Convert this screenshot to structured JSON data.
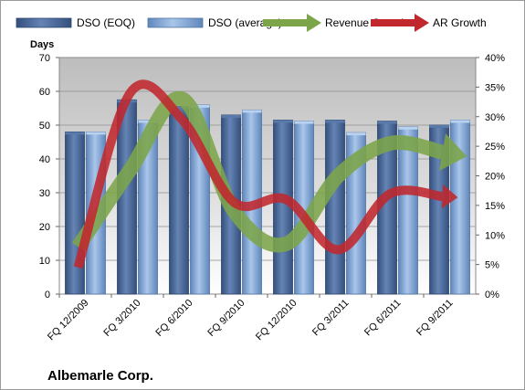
{
  "chart_data": {
    "type": "bar",
    "title": "",
    "company_label": "Albemarle Corp.",
    "ylabel": "Days",
    "ylim": [
      0,
      70
    ],
    "yticks": [
      0,
      10,
      20,
      30,
      40,
      50,
      60,
      70
    ],
    "y2lim": [
      0,
      40
    ],
    "y2ticks": [
      "0%",
      "5%",
      "10%",
      "15%",
      "20%",
      "25%",
      "30%",
      "35%",
      "40%"
    ],
    "y2values": [
      0,
      5,
      10,
      15,
      20,
      25,
      30,
      35,
      40
    ],
    "categories": [
      "FQ 12/2009",
      "FQ 3/2010",
      "FQ 6/2010",
      "FQ 9/2010",
      "FQ 12/2010",
      "FQ 3/2011",
      "FQ 6/2011",
      "FQ 9/2011"
    ],
    "series": [
      {
        "name": "DSO (EOQ)",
        "kind": "bar",
        "axis": "left",
        "color": "#4a6797",
        "values": [
          48,
          57.5,
          55.5,
          53,
          51.5,
          51.5,
          51.2,
          50
        ]
      },
      {
        "name": "DSO (average)",
        "kind": "bar",
        "axis": "left",
        "color": "#7da3d4",
        "values": [
          48,
          51.5,
          56,
          54.5,
          51.2,
          47.8,
          49.5,
          51.5
        ]
      },
      {
        "name": "Revenue Growth",
        "kind": "trend-arrow",
        "axis": "right",
        "color": "#7ca54a",
        "values": [
          8,
          21,
          33,
          14,
          8.5,
          20,
          25.5,
          24
        ]
      },
      {
        "name": "AR Growth",
        "kind": "trend-arrow",
        "axis": "right",
        "color": "#c0282e",
        "values": [
          4.5,
          34,
          29.5,
          15.5,
          16,
          7.5,
          17,
          16.5
        ]
      }
    ],
    "grid": true,
    "legend": "top"
  }
}
